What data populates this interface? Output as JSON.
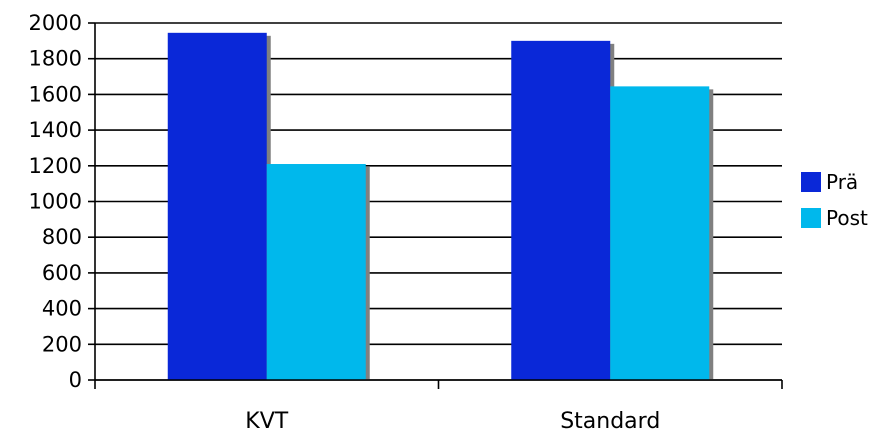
{
  "chart_data": {
    "type": "bar",
    "categories": [
      "KVT",
      "Standard"
    ],
    "series": [
      {
        "name": "Prä",
        "values": [
          1945,
          1900
        ],
        "color": "#0a28d8"
      },
      {
        "name": "Post",
        "values": [
          1210,
          1645
        ],
        "color": "#00b8ec"
      }
    ],
    "ylim": [
      0,
      2000
    ],
    "yticks": [
      0,
      200,
      400,
      600,
      800,
      1000,
      1200,
      1400,
      1600,
      1800,
      2000
    ],
    "grid": true,
    "legend": "right",
    "shadow_color": "#808080"
  }
}
